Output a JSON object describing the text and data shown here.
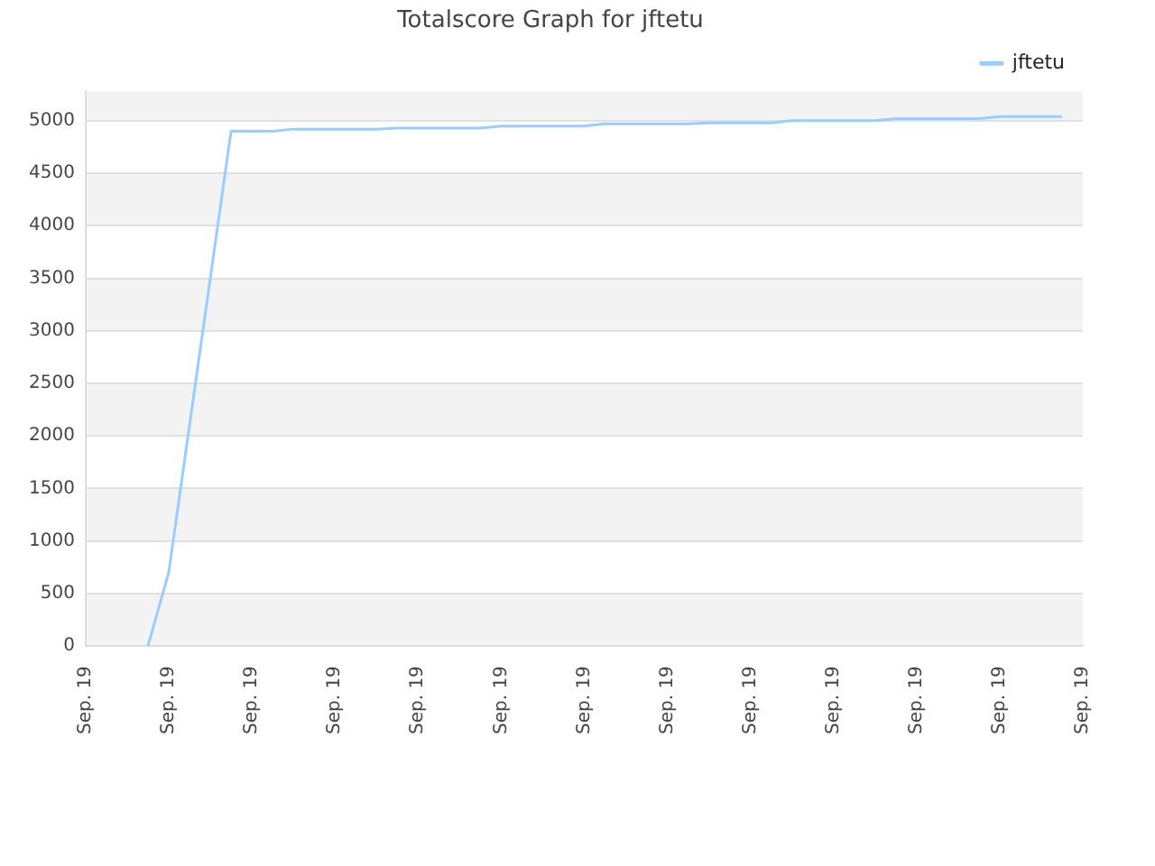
{
  "chart_data": {
    "type": "line",
    "title": "Totalscore Graph for jftetu",
    "categories": [
      "Sep. 19",
      null,
      null,
      null,
      "Sep. 19",
      null,
      null,
      null,
      "Sep. 19",
      null,
      null,
      null,
      "Sep. 19",
      null,
      null,
      null,
      "Sep. 19",
      null,
      null,
      null,
      "Sep. 19",
      null,
      null,
      null,
      "Sep. 19",
      null,
      null,
      null,
      "Sep. 19",
      null,
      null,
      null,
      "Sep. 19",
      null,
      null,
      null,
      "Sep. 19",
      null,
      null,
      null,
      "Sep. 19",
      null,
      null,
      null,
      "Sep. 19",
      null,
      null,
      null,
      "Sep. 19"
    ],
    "ylim": [
      0,
      5280
    ],
    "yticks": [
      0,
      500,
      1000,
      1500,
      2000,
      2500,
      3000,
      3500,
      4000,
      4500,
      5000
    ],
    "grid": "y",
    "legend": "top right",
    "marker": "none",
    "series": [
      {
        "name": "jftetu",
        "color": "#99ccff",
        "values": [
          null,
          null,
          null,
          0,
          700,
          2100,
          3500,
          4900,
          4900,
          4900,
          4920,
          4920,
          4920,
          4920,
          4920,
          4930,
          4930,
          4930,
          4930,
          4930,
          4950,
          4950,
          4950,
          4950,
          4950,
          4970,
          4970,
          4970,
          4970,
          4970,
          4980,
          4980,
          4980,
          4980,
          5000,
          5000,
          5000,
          5000,
          5000,
          5020,
          5020,
          5020,
          5020,
          5020,
          5040,
          5040,
          5040,
          5040,
          null
        ]
      }
    ]
  }
}
